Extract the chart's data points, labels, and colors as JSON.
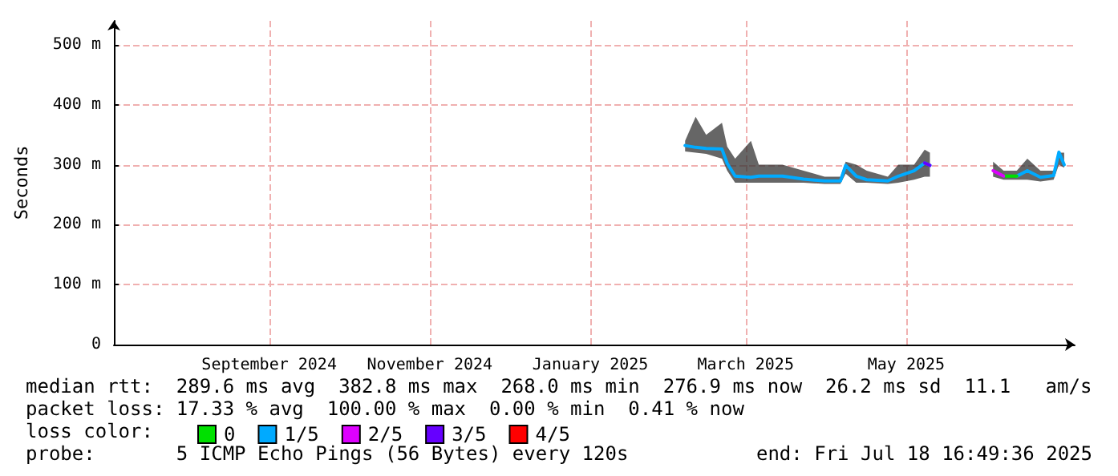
{
  "chart_data": {
    "type": "line",
    "ylabel": "Seconds",
    "xlim": [
      "2024-07-18",
      "2025-07-18"
    ],
    "xticks": [
      {
        "value": "2024-09-15",
        "label": "September 2024"
      },
      {
        "value": "2024-11-15",
        "label": "November 2024"
      },
      {
        "value": "2025-01-15",
        "label": "January 2025"
      },
      {
        "value": "2025-03-15",
        "label": "March 2025"
      },
      {
        "value": "2025-05-15",
        "label": "May 2025"
      }
    ],
    "ylim": [
      0,
      540
    ],
    "yticks": [
      0,
      {
        "value": 100,
        "label": "100 m"
      },
      {
        "value": 200,
        "label": "200 m"
      },
      {
        "value": 300,
        "label": "300 m"
      },
      {
        "value": 400,
        "label": "400 m"
      },
      {
        "value": 500,
        "label": "500 m"
      }
    ],
    "grid": true,
    "legend": "bottom left",
    "legend_title": "loss color:",
    "marker": "none",
    "x": [
      "2025-02-20",
      "2025-02-24",
      "2025-02-28",
      "2025-03-06",
      "2025-03-08",
      "2025-03-11",
      "2025-03-17",
      "2025-03-20",
      "2025-03-29",
      "2025-04-06",
      "2025-04-14",
      "2025-04-20",
      "2025-04-22",
      "2025-04-26",
      "2025-04-30",
      "2025-05-08",
      "2025-05-12",
      "2025-05-18",
      "2025-05-22",
      "2025-05-24",
      "2025-06-05",
      "2025-06-17",
      "2025-06-21",
      "2025-06-26",
      "2025-06-30",
      "2025-07-05",
      "2025-07-10",
      "2025-07-12",
      "2025-07-14"
    ],
    "series": [
      {
        "name": "0",
        "color": "#00e000",
        "values": [
          null,
          null,
          null,
          null,
          null,
          null,
          null,
          null,
          null,
          null,
          null,
          null,
          null,
          null,
          null,
          null,
          null,
          null,
          null,
          null,
          null,
          null,
          281,
          281,
          null,
          null,
          null,
          null,
          null
        ]
      },
      {
        "name": "1/5",
        "color": "#00aaff",
        "values": [
          332,
          329,
          327,
          326,
          302,
          281,
          279,
          281,
          281,
          276,
          273,
          273,
          299,
          281,
          275,
          273,
          281,
          290,
          303,
          299,
          null,
          null,
          null,
          281,
          290,
          279,
          282,
          321,
          300
        ],
        "lower": [
          322,
          320,
          318,
          310,
          290,
          270,
          270,
          270,
          270,
          270,
          268,
          268,
          285,
          270,
          270,
          268,
          270,
          275,
          280,
          280,
          null,
          280,
          275,
          275,
          275,
          272,
          275,
          300,
          295
        ],
        "upper": [
          340,
          380,
          350,
          370,
          330,
          310,
          340,
          300,
          300,
          290,
          280,
          280,
          305,
          300,
          290,
          280,
          300,
          300,
          325,
          320,
          null,
          305,
          290,
          290,
          310,
          290,
          290,
          320,
          320
        ]
      },
      {
        "name": "2/5",
        "color": "#dd00ff",
        "values": [
          null,
          null,
          null,
          null,
          null,
          null,
          null,
          null,
          null,
          null,
          null,
          null,
          null,
          null,
          null,
          null,
          null,
          null,
          null,
          null,
          null,
          290,
          281,
          null,
          null,
          null,
          null,
          null,
          null
        ]
      },
      {
        "name": "3/5",
        "color": "#6600ff",
        "values": [
          null,
          null,
          null,
          null,
          null,
          null,
          null,
          null,
          null,
          null,
          null,
          null,
          null,
          null,
          null,
          null,
          null,
          null,
          303,
          299,
          null,
          null,
          null,
          null,
          null,
          null,
          null,
          null,
          null
        ]
      },
      {
        "name": "4/5",
        "color": "#ff0000",
        "values": [
          null,
          null,
          null,
          null,
          null,
          null,
          null,
          null,
          null,
          null,
          null,
          null,
          null,
          null,
          null,
          null,
          null,
          null,
          null,
          null,
          null,
          null,
          null,
          null,
          null,
          null,
          null,
          null,
          null
        ]
      }
    ],
    "annotations": [
      "median rtt:  289.6 ms avg  382.8 ms max  268.0 ms min  276.9 ms now  26.2 ms sd  11.1   am/s",
      "packet loss: 17.33 % avg  100.00 % max  0.00 % min  0.41 % now",
      "probe:       5 ICMP Echo Pings (56 Bytes) every 120s",
      "end: Fri Jul 18 16:49:36 2025"
    ]
  }
}
